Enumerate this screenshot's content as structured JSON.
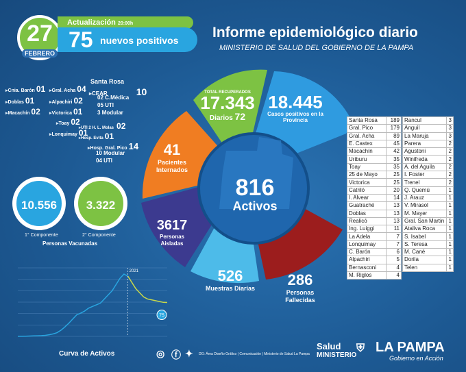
{
  "header": {
    "day": "27",
    "month": "FEBRERO",
    "update_label": "Actualización",
    "update_time": "20:00h",
    "new_positives_value": "75",
    "new_positives_label": "nuevos positivos",
    "title": "Informe epidemiológico diario",
    "subtitle": "MINISTERIO DE SALUD DEL GOBIERNO DE LA PAMPA"
  },
  "localities_left": [
    {
      "name": "Cnia. Barón",
      "value": "01"
    },
    {
      "name": "Gral. Acha",
      "value": "04"
    },
    {
      "name": "Doblas",
      "value": "01"
    },
    {
      "name": "Alpachiri",
      "value": "02"
    },
    {
      "name": "Macachín",
      "value": "02"
    },
    {
      "name": "Victorica",
      "value": "01"
    },
    {
      "name": "Toay",
      "value": "02"
    },
    {
      "name": "Lonquimay",
      "value": "01"
    }
  ],
  "santa_rosa": {
    "title": "Santa Rosa",
    "cear_label": "CEAR",
    "cear_value": "10",
    "c_medica": "02 C.Médica",
    "uti": "05 UTI",
    "modular": "3 Modular",
    "uti2_label": "UTI 2 H. L. Molas",
    "uti2_value": "02",
    "evita_label": "Hosp. Evita",
    "evita_value": "01"
  },
  "gral_pico": {
    "label": "Hosp. Gral. Pico",
    "value": "14",
    "modular": "10 Modular",
    "uti": "04 UTI"
  },
  "stats": {
    "recovered_label": "TOTAL RECUPERADOS",
    "recovered_value": "17.343",
    "daily_label": "Diarios",
    "daily_value": "72",
    "positive_value": "18.445",
    "positive_label": "Casos positivos en la Provincia",
    "internados_value": "41",
    "internados_label": "Pacientes Internados",
    "active_value": "816",
    "active_label": "Activos",
    "isolated_value": "3617",
    "isolated_label": "Personas Aisladas",
    "samples_value": "526",
    "samples_label": "Muestras Diarias",
    "deceased_value": "286",
    "deceased_label": "Personas Fallecidas"
  },
  "vaccines": {
    "first_value": "10.556",
    "first_label": "1° Componente",
    "second_value": "3.322",
    "second_label": "2° Componente",
    "title": "Personas Vacunadas"
  },
  "table_left": [
    [
      "Santa Rosa",
      "189"
    ],
    [
      "Gral. Pico",
      "179"
    ],
    [
      "Gral. Acha",
      "89"
    ],
    [
      "E. Castex",
      "45"
    ],
    [
      "Macachín",
      "42"
    ],
    [
      "Uriburu",
      "35"
    ],
    [
      "Toay",
      "35"
    ],
    [
      "25 de Mayo",
      "25"
    ],
    [
      "Victorica",
      "25"
    ],
    [
      "Catriló",
      "20"
    ],
    [
      "I. Alvear",
      "14"
    ],
    [
      "Guatraché",
      "13"
    ],
    [
      "Doblas",
      "13"
    ],
    [
      "Realicó",
      "13"
    ],
    [
      "Ing. Luiggi",
      "11"
    ],
    [
      "La Adela",
      "7"
    ],
    [
      "Lonquimay",
      "7"
    ],
    [
      "C. Barón",
      "6"
    ],
    [
      "Alpachiri",
      "5"
    ],
    [
      "Bernasconi",
      "4"
    ],
    [
      "M. Riglos",
      "4"
    ]
  ],
  "table_right": [
    [
      "Rancul",
      "3"
    ],
    [
      "Anguil",
      "3"
    ],
    [
      "La Maruja",
      "3"
    ],
    [
      "Parera",
      "2"
    ],
    [
      "Agustoni",
      "2"
    ],
    [
      "Winifreda",
      "2"
    ],
    [
      "A. del Aguila",
      "2"
    ],
    [
      "I. Foster",
      "2"
    ],
    [
      "Trenel",
      "2"
    ],
    [
      "Q. Quemú",
      "1"
    ],
    [
      "J. Arauz",
      "1"
    ],
    [
      "V. Mirasol",
      "1"
    ],
    [
      "M. Mayer",
      "1"
    ],
    [
      "Gral. San Martin",
      "1"
    ],
    [
      "Ataliva Roca",
      "1"
    ],
    [
      "S. Isabel",
      "1"
    ],
    [
      "S. Teresa",
      "1"
    ],
    [
      "M. Cané",
      "1"
    ],
    [
      "Dorila",
      "1"
    ],
    [
      "Telen",
      "1"
    ]
  ],
  "chart_data": {
    "type": "line",
    "title": "Curva de Activos",
    "annotations": [
      "2021",
      "75"
    ],
    "series": [
      {
        "name": "Activos",
        "values": [
          2,
          3,
          5,
          8,
          12,
          14,
          18,
          25,
          40,
          60,
          90,
          150,
          230,
          320,
          420,
          520,
          560,
          610,
          680,
          720,
          760,
          800,
          900,
          1000,
          1100,
          1250,
          1400,
          1500,
          1450,
          1300,
          1150,
          1050,
          950,
          900,
          880,
          860,
          840,
          820,
          816
        ]
      }
    ]
  },
  "footer": {
    "credit": "DG: Área Diseño Gráfico | Comunicación | Ministerio de Salud La Pampa",
    "salud": "Salud",
    "ministerio": "MINISTERIO",
    "brand": "LA PAMPA",
    "slogan": "Gobierno en Acción"
  },
  "colors": {
    "green": "#7dc243",
    "orange": "#f07d22",
    "purple": "#3c3a8f",
    "lightblue": "#4dbbe9",
    "red": "#9c1d1d",
    "blue": "#1d8fd8"
  }
}
